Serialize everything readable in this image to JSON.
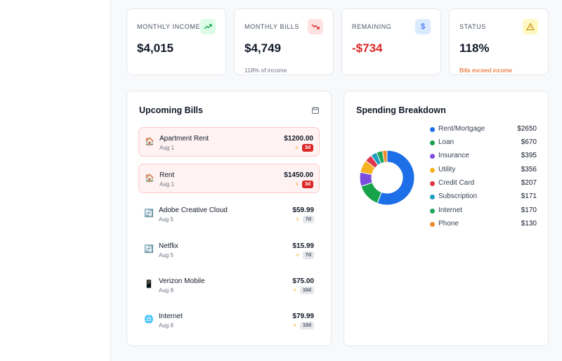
{
  "stats": {
    "income": {
      "label": "Monthly Income",
      "value": "$4,015",
      "icon": "trending-up-icon",
      "color": "#16a34a"
    },
    "bills": {
      "label": "Monthly Bills",
      "value": "$4,749",
      "sub": "118% of income",
      "icon": "trending-down-icon",
      "color": "#dc2626"
    },
    "remaining": {
      "label": "Remaining",
      "value": "-$734",
      "icon": "dollar-icon",
      "color": "#dc2626"
    },
    "status": {
      "label": "Status",
      "value": "118%",
      "sub": "Bills exceed income",
      "icon": "warning-icon",
      "color": "#ea580c"
    }
  },
  "upcoming": {
    "title": "Upcoming Bills",
    "items": [
      {
        "name": "Apartment Rent",
        "date": "Aug 1",
        "amount": "$1200.00",
        "days": "3d",
        "icon": "🏠"
      },
      {
        "name": "Rent",
        "date": "Aug 1",
        "amount": "$1450.00",
        "days": "3d",
        "icon": "🏠"
      },
      {
        "name": "Adobe Creative Cloud",
        "date": "Aug 5",
        "amount": "$59.99",
        "days": "7d",
        "icon": "🔄"
      },
      {
        "name": "Netflix",
        "date": "Aug 5",
        "amount": "$15.99",
        "days": "7d",
        "icon": "🔄"
      },
      {
        "name": "Verizon Mobile",
        "date": "Aug 8",
        "amount": "$75.00",
        "days": "10d",
        "icon": "📱"
      },
      {
        "name": "Internet",
        "date": "Aug 8",
        "amount": "$79.99",
        "days": "10d",
        "icon": "🌐"
      }
    ]
  },
  "spending": {
    "title": "Spending Breakdown",
    "items": [
      {
        "name": "Rent/Mortgage",
        "value": "$2650",
        "color": "#1d6fe8"
      },
      {
        "name": "Loan",
        "value": "$670",
        "color": "#16a34a"
      },
      {
        "name": "Insurance",
        "value": "$395",
        "color": "#7c4dde"
      },
      {
        "name": "Utility",
        "value": "$356",
        "color": "#f5b21e"
      },
      {
        "name": "Credit Card",
        "value": "$207",
        "color": "#e0364a"
      },
      {
        "name": "Subscription",
        "value": "$171",
        "color": "#1f9dc2"
      },
      {
        "name": "Internet",
        "value": "$170",
        "color": "#1ea55a"
      },
      {
        "name": "Phone",
        "value": "$130",
        "color": "#f08a2b"
      }
    ]
  },
  "chart_data": {
    "type": "pie",
    "categories": [
      "Rent/Mortgage",
      "Loan",
      "Insurance",
      "Utility",
      "Credit Card",
      "Subscription",
      "Internet",
      "Phone"
    ],
    "values": [
      2650,
      670,
      395,
      356,
      207,
      171,
      170,
      130
    ],
    "legend": "right"
  }
}
